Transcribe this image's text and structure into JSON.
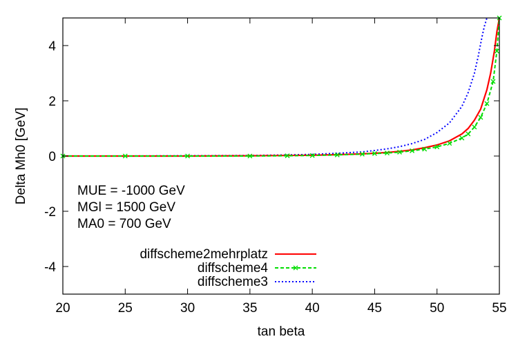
{
  "chart_data": {
    "type": "line",
    "xlabel": "tan beta",
    "ylabel": "Delta Mh0 [GeV]",
    "xlim": [
      20,
      55
    ],
    "ylim": [
      -5,
      5
    ],
    "xticks": [
      20,
      25,
      30,
      35,
      40,
      45,
      50,
      55
    ],
    "yticks": [
      -4,
      -2,
      0,
      2,
      4
    ],
    "xtick_labels": [
      "20",
      "25",
      "30",
      "35",
      "40",
      "45",
      "50",
      "55"
    ],
    "ytick_labels": [
      "-4",
      "-2",
      "0",
      "2",
      "4"
    ],
    "grid": false,
    "legend_position": "bottom-left",
    "annotations": [
      "MUE = -1000 GeV",
      "MGl = 1500 GeV",
      "MA0 = 700 GeV"
    ],
    "series": [
      {
        "name": "diffscheme2mehrplatz",
        "color": "#ff0000",
        "style": "solid",
        "marker": "none",
        "x": [
          20,
          25,
          30,
          35,
          38,
          40,
          42,
          44,
          45,
          46,
          47,
          48,
          49,
          50,
          51,
          52,
          52.5,
          53,
          53.5,
          54,
          54.3,
          54.6,
          54.8,
          55
        ],
        "y": [
          0,
          0,
          0,
          0.01,
          0.02,
          0.03,
          0.05,
          0.08,
          0.1,
          0.13,
          0.17,
          0.22,
          0.3,
          0.4,
          0.55,
          0.8,
          1.0,
          1.3,
          1.7,
          2.4,
          3.0,
          3.8,
          4.5,
          5.0
        ]
      },
      {
        "name": "diffscheme4",
        "color": "#00dd00",
        "style": "dashed",
        "marker": "x",
        "x": [
          20,
          25,
          30,
          35,
          38,
          40,
          42,
          44,
          45,
          46,
          47,
          48,
          49,
          50,
          51,
          52,
          52.5,
          53,
          53.5,
          54,
          54.5,
          54.8,
          55
        ],
        "y": [
          0,
          0,
          0,
          0,
          0.01,
          0.02,
          0.04,
          0.07,
          0.09,
          0.11,
          0.14,
          0.19,
          0.25,
          0.33,
          0.46,
          0.65,
          0.8,
          1.05,
          1.4,
          1.9,
          2.7,
          3.8,
          5.0
        ]
      },
      {
        "name": "diffscheme3",
        "color": "#0000ff",
        "style": "dotted",
        "marker": "none",
        "x": [
          20,
          25,
          30,
          35,
          38,
          40,
          42,
          44,
          45,
          46,
          47,
          48,
          49,
          50,
          51,
          52,
          52.5,
          53,
          53.3,
          53.6,
          53.8,
          54
        ],
        "y": [
          0,
          0,
          0.01,
          0.02,
          0.04,
          0.06,
          0.1,
          0.15,
          0.2,
          0.26,
          0.34,
          0.45,
          0.6,
          0.85,
          1.2,
          1.8,
          2.3,
          3.0,
          3.6,
          4.3,
          4.7,
          5.0
        ]
      }
    ]
  }
}
